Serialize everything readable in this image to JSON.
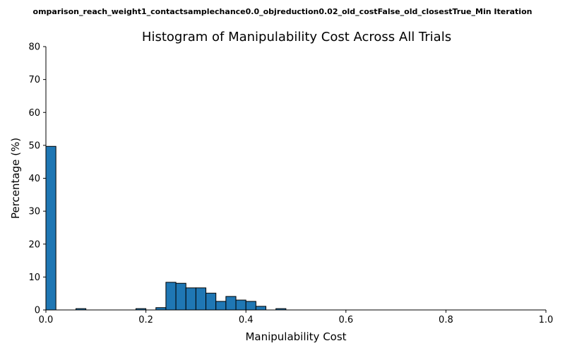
{
  "chart_data": {
    "type": "bar",
    "suptitle": "omparison_reach_weight1_contactsamplechance0.0_objreduction0.02_old_costFalse_old_closestTrue_Min Iteration",
    "title": "Histogram of Manipulability Cost Across All Trials",
    "xlabel": "Manipulability Cost",
    "ylabel": "Percentage (%)",
    "xlim": [
      0.0,
      1.0
    ],
    "ylim": [
      0,
      80
    ],
    "xticks": [
      0.0,
      0.2,
      0.4,
      0.6,
      0.8,
      1.0
    ],
    "xtick_labels": [
      "0.0",
      "0.2",
      "0.4",
      "0.6",
      "0.8",
      "1.0"
    ],
    "yticks": [
      0,
      10,
      20,
      30,
      40,
      50,
      60,
      70,
      80
    ],
    "ytick_labels": [
      "0",
      "10",
      "20",
      "30",
      "40",
      "50",
      "60",
      "70",
      "80"
    ],
    "bin_width": 0.02,
    "bins": [
      {
        "start": 0.0,
        "value": 49.7
      },
      {
        "start": 0.06,
        "value": 0.4
      },
      {
        "start": 0.18,
        "value": 0.4
      },
      {
        "start": 0.22,
        "value": 0.7
      },
      {
        "start": 0.24,
        "value": 8.4
      },
      {
        "start": 0.26,
        "value": 8.1
      },
      {
        "start": 0.28,
        "value": 6.7
      },
      {
        "start": 0.3,
        "value": 6.7
      },
      {
        "start": 0.32,
        "value": 5.1
      },
      {
        "start": 0.34,
        "value": 2.6
      },
      {
        "start": 0.36,
        "value": 4.1
      },
      {
        "start": 0.38,
        "value": 3.0
      },
      {
        "start": 0.4,
        "value": 2.6
      },
      {
        "start": 0.42,
        "value": 1.1
      },
      {
        "start": 0.46,
        "value": 0.4
      }
    ],
    "bar_color": "#1f77b4",
    "edge_color": "#000000",
    "grid": false,
    "legend": "none"
  }
}
